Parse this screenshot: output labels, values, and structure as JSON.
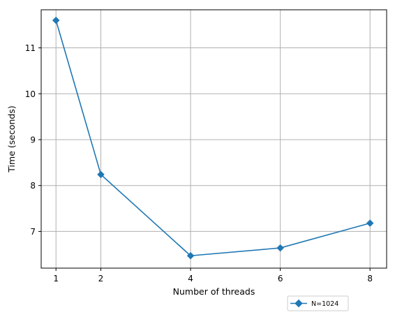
{
  "chart_data": {
    "type": "line",
    "xlabel": "Number of threads",
    "ylabel": "Time (seconds)",
    "x": [
      1,
      2,
      4,
      6,
      8
    ],
    "series": [
      {
        "name": "N=1024",
        "values": [
          11.6,
          8.24,
          6.47,
          6.64,
          7.18
        ]
      }
    ],
    "xlim": [
      0.67,
      8.37
    ],
    "ylim": [
      6.2,
      11.83
    ],
    "xticks": [
      1,
      2,
      4,
      6,
      8
    ],
    "yticks": [
      7,
      8,
      9,
      10,
      11
    ],
    "xtick_labels": [
      "1",
      "2",
      "4",
      "6",
      "8"
    ],
    "ytick_labels": [
      "7",
      "8",
      "9",
      "10",
      "11"
    ],
    "grid": true,
    "legend_placement": "below-right",
    "line_color": "#1f77b4",
    "marker": "diamond",
    "grid_color": "#b0b0b0"
  }
}
